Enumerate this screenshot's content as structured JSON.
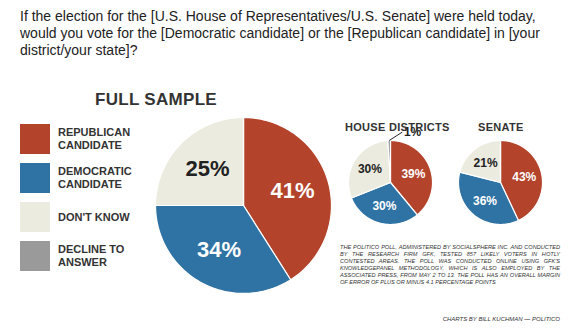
{
  "title": "If the election for the [U.S. House of Representatives/U.S. Senate] were held today, would you vote for the [Democratic candidate] or the [Republican candidate] in [your district/your state]?",
  "chart_data": [
    {
      "type": "pie",
      "title": "FULL SAMPLE",
      "categories": [
        "REPUBLICAN CANDIDATE",
        "DEMOCRATIC CANDIDATE",
        "DON'T KNOW",
        "DECLINE TO ANSWER"
      ],
      "values": [
        41,
        34,
        25,
        0
      ],
      "value_labels": [
        "41%",
        "34%",
        "25%",
        null
      ],
      "colors": [
        "#b3432b",
        "#2f73a5",
        "#ecebdf",
        "#9a9a9a"
      ],
      "data_labels": true,
      "legend": "left"
    },
    {
      "type": "pie",
      "title": "HOUSE DISTRICTS",
      "categories": [
        "REPUBLICAN CANDIDATE",
        "DEMOCRATIC CANDIDATE",
        "DON'T KNOW",
        "DECLINE TO ANSWER"
      ],
      "values": [
        39,
        30,
        30,
        1
      ],
      "value_labels": [
        "39%",
        "30%",
        "30%",
        "1%"
      ],
      "colors": [
        "#b3432b",
        "#2f73a5",
        "#ecebdf",
        "#9a9a9a"
      ],
      "data_labels": true
    },
    {
      "type": "pie",
      "title": "SENATE",
      "categories": [
        "REPUBLICAN CANDIDATE",
        "DEMOCRATIC CANDIDATE",
        "DON'T KNOW",
        "DECLINE TO ANSWER"
      ],
      "values": [
        43,
        36,
        21,
        0
      ],
      "value_labels": [
        "43%",
        "36%",
        "21%",
        null
      ],
      "colors": [
        "#b3432b",
        "#2f73a5",
        "#ecebdf",
        "#9a9a9a"
      ],
      "data_labels": true
    }
  ],
  "note": "THE POLITICO POLL, ADMINISTERED BY SOCIALSPHERE INC. AND CONDUCTED BY THE RESEARCH FIRM GFK, TESTED 857 LIKELY VOTERS IN HOTLY CONTESTED AREAS. THE POLL WAS CONDUCTED ONLINE USING GFK'S KNOWLEDGEPANEL METHODOLOGY, WHICH IS ALSO EMPLOYED BY THE ASSOCIATED PRESS, FROM MAY 2 TO 13. THE POLL HAS AN OVERALL MARGIN OF ERROR OF PLUS OR MINUS 4.1 PERCENTAGE POINTS",
  "credit": "CHARTS BY BILL KUCHMAN — POLITICO"
}
